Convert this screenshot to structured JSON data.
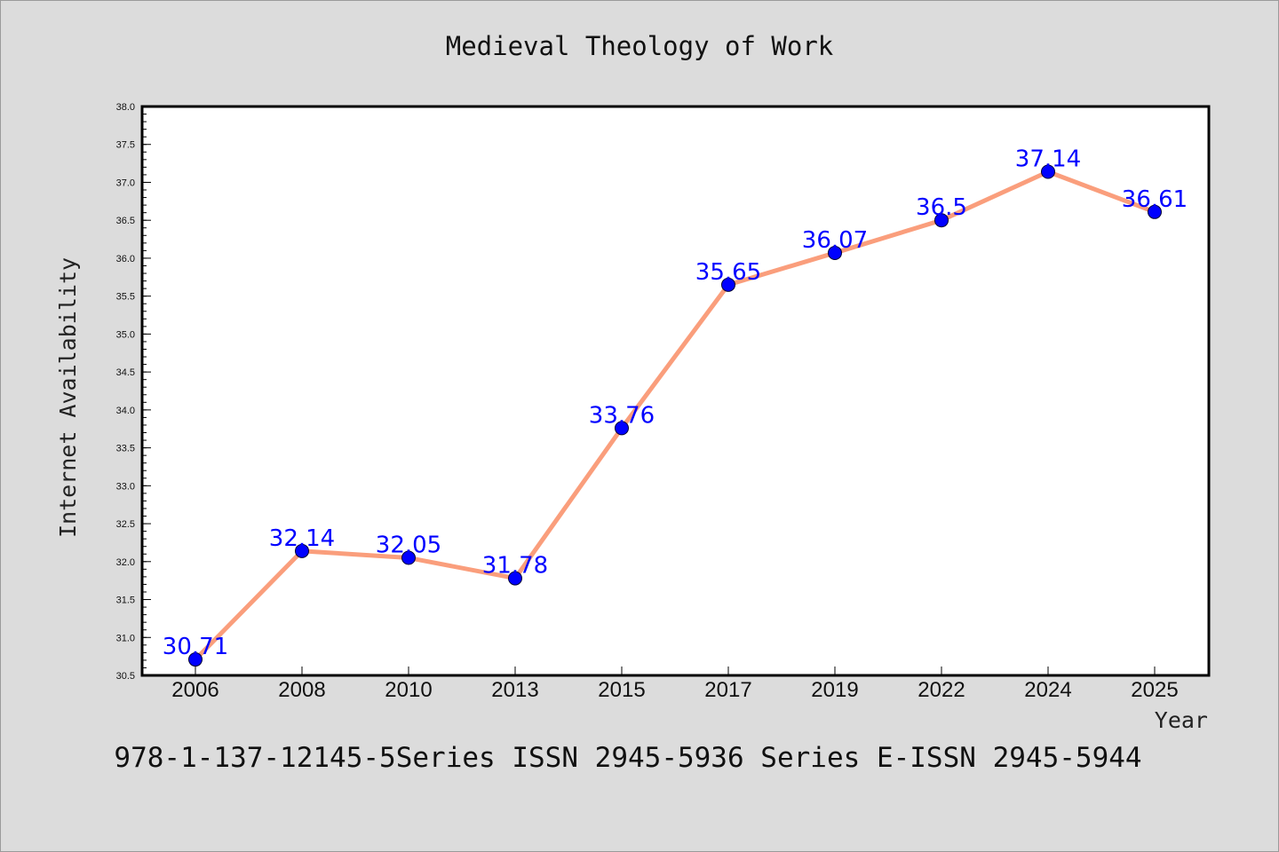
{
  "colors": {
    "background": "#dcdcdc",
    "plot_background": "#ffffff",
    "line": "#fa9e7c",
    "marker": "#0000ff",
    "data_label": "#0000ff"
  },
  "chart_data": {
    "type": "line",
    "title": "Medieval Theology of Work",
    "xlabel": "Year",
    "ylabel": "Internet Availability",
    "categories": [
      "2006",
      "2008",
      "2010",
      "2013",
      "2015",
      "2017",
      "2019",
      "2022",
      "2024",
      "2025"
    ],
    "series": [
      {
        "values": [
          30.71,
          32.14,
          32.05,
          31.78,
          33.76,
          35.65,
          36.07,
          36.5,
          37.14,
          36.61
        ],
        "labels": [
          "30.71",
          "32.14",
          "32.05",
          "31.78",
          "33.76",
          "35.65",
          "36.07",
          "36.5",
          "37.14",
          "36.61"
        ]
      }
    ],
    "ylim": [
      30.5,
      38.0
    ],
    "yticks": [
      "30.5",
      "31.0",
      "31.5",
      "32.0",
      "32.5",
      "33.0",
      "33.5",
      "34.0",
      "34.5",
      "35.0",
      "35.5",
      "36.0",
      "36.5",
      "37.0",
      "37.5",
      "38.0"
    ],
    "grid": false,
    "legend": "none"
  },
  "footer": {
    "text": "978-1-137-12145-5Series ISSN 2945-5936 Series E-ISSN 2945-5944"
  }
}
